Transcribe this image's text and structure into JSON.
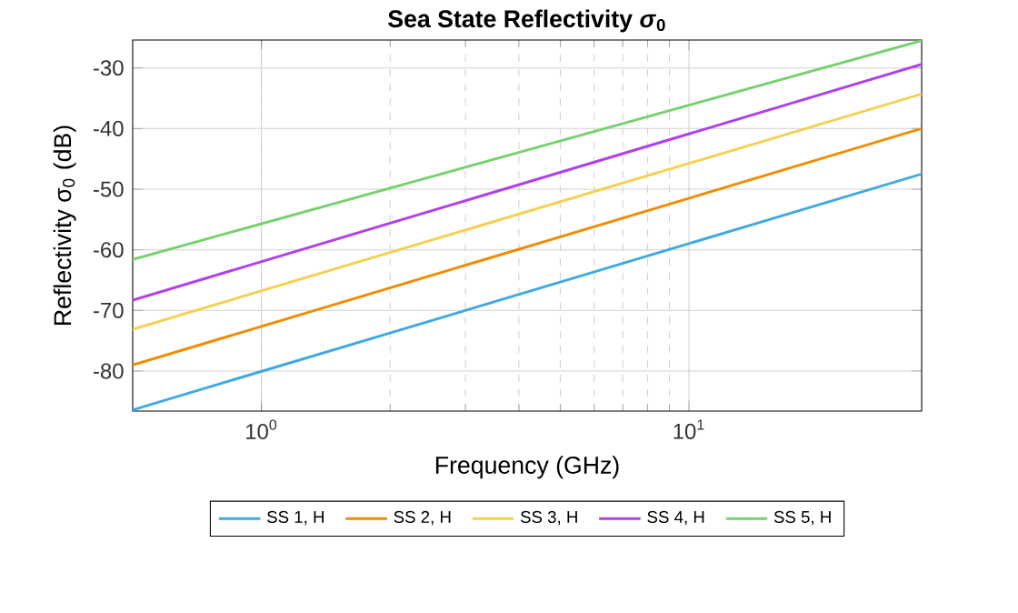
{
  "chart_data": {
    "type": "line",
    "title": "Sea State Reflectivity *σ*$_{0}$",
    "xlabel": "Frequency (GHz)",
    "ylabel": "Reflectivity σ$_{0}$ (dB)",
    "x": [
      0.5,
      35
    ],
    "series": [
      {
        "name": "SS 1, H",
        "color": "#3fa9e0",
        "values": [
          -86.4,
          -47.5
        ]
      },
      {
        "name": "SS 2, H",
        "color": "#f08c00",
        "values": [
          -79.0,
          -40.0
        ]
      },
      {
        "name": "SS 3, H",
        "color": "#f5d050",
        "values": [
          -73.1,
          -34.3
        ]
      },
      {
        "name": "SS 4, H",
        "color": "#b041e8",
        "values": [
          -68.3,
          -29.4
        ]
      },
      {
        "name": "SS 5, H",
        "color": "#77d170",
        "values": [
          -61.6,
          -25.5
        ]
      }
    ],
    "log": "x",
    "xlim": [
      0.5,
      35
    ],
    "ylim": [
      -86.6,
      -25.4
    ],
    "xticks": [
      {
        "value": 1,
        "label": "10$^{0}$"
      },
      {
        "value": 10,
        "label": "10$^{1}$"
      }
    ],
    "yticks": [
      -80,
      -70,
      -60,
      -50,
      -40,
      -30
    ],
    "grid": true,
    "legend": "bottom",
    "marker": "none"
  }
}
